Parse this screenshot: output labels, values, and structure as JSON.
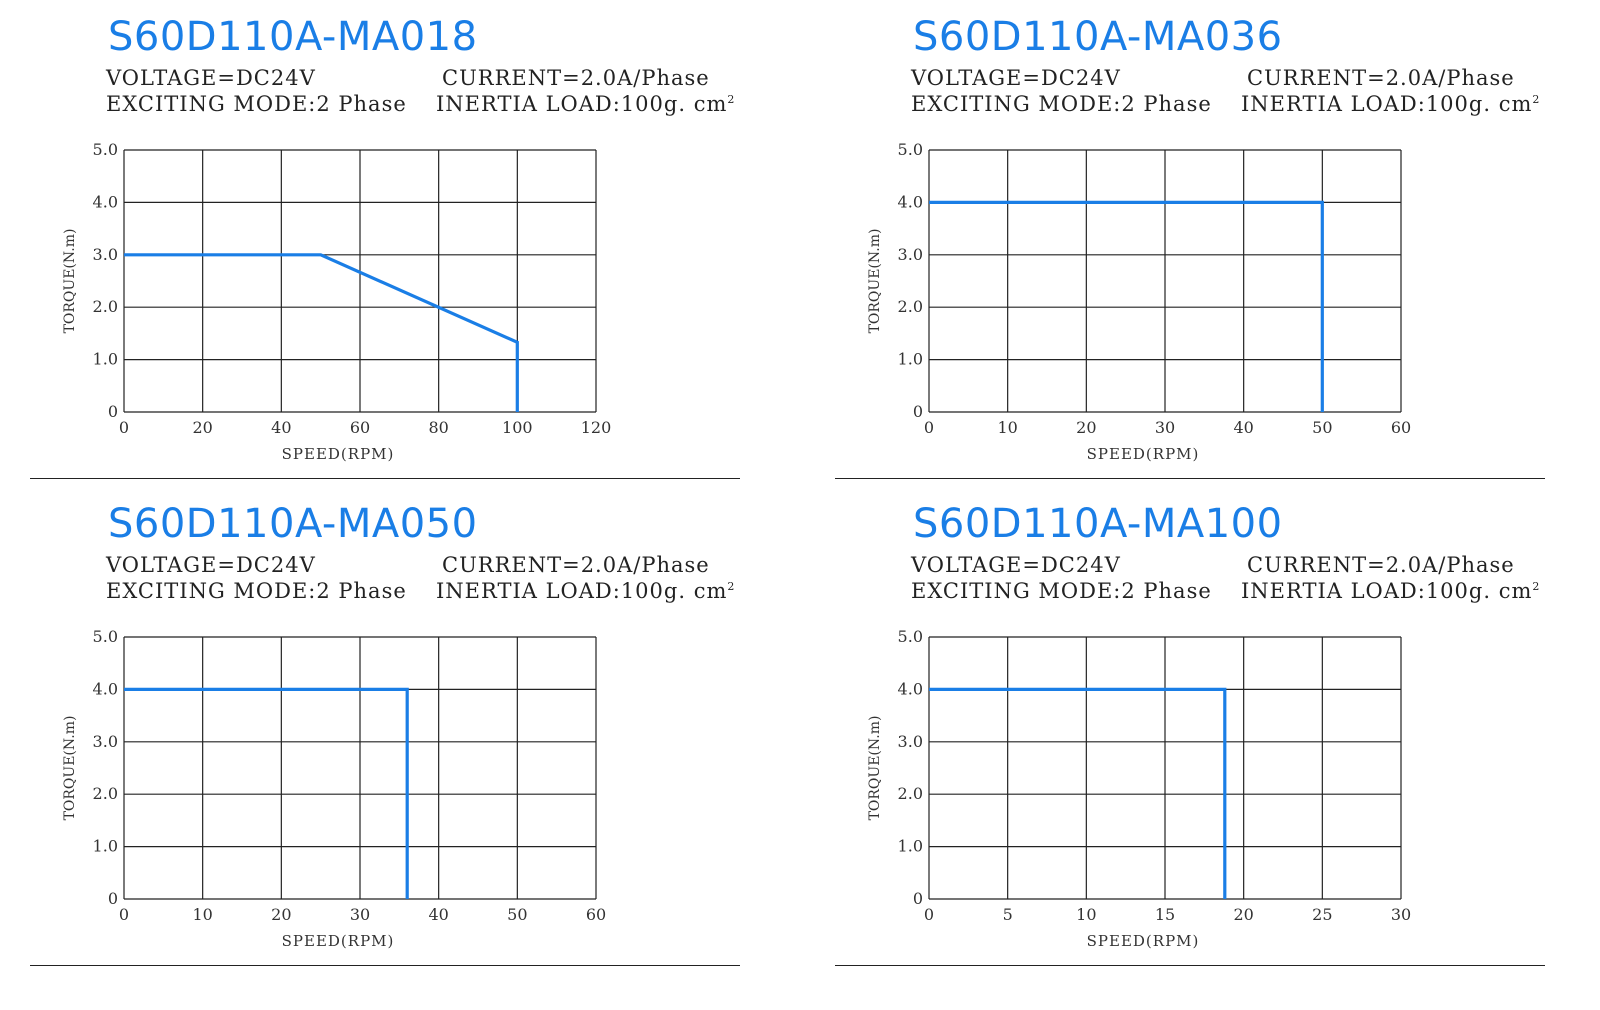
{
  "panels": [
    {
      "title": "S60D110A-MA018",
      "voltage": "VOLTAGE=DC24V",
      "current": "CURRENT=2.0A/Phase",
      "exciting_mode": "EXCITING MODE:2 Phase",
      "inertia_load": "INERTIA LOAD:100g. cm",
      "inertia_unit_sup": "2"
    },
    {
      "title": "S60D110A-MA036",
      "voltage": "VOLTAGE=DC24V",
      "current": "CURRENT=2.0A/Phase",
      "exciting_mode": "EXCITING MODE:2 Phase",
      "inertia_load": "INERTIA LOAD:100g. cm",
      "inertia_unit_sup": "2"
    },
    {
      "title": "S60D110A-MA050",
      "voltage": "VOLTAGE=DC24V",
      "current": "CURRENT=2.0A/Phase",
      "exciting_mode": "EXCITING MODE:2 Phase",
      "inertia_load": "INERTIA LOAD:100g. cm",
      "inertia_unit_sup": "2"
    },
    {
      "title": "S60D110A-MA100",
      "voltage": "VOLTAGE=DC24V",
      "current": "CURRENT=2.0A/Phase",
      "exciting_mode": "EXCITING MODE:2 Phase",
      "inertia_load": "INERTIA LOAD:100g. cm",
      "inertia_unit_sup": "2"
    }
  ],
  "chart_data": [
    {
      "type": "line",
      "title": "S60D110A-MA018",
      "xlabel": "SPEED(RPM)",
      "ylabel": "TORQUE(N.m)",
      "xlim": [
        0,
        120
      ],
      "ylim": [
        0,
        5
      ],
      "xticks": [
        "0",
        "20",
        "40",
        "60",
        "80",
        "100",
        "120"
      ],
      "yticks": [
        "0",
        "1.0",
        "2.0",
        "3.0",
        "4.0",
        "5.0"
      ],
      "grid": true,
      "color": "#1a7ee6",
      "series": [
        {
          "x": [
            0,
            50,
            100,
            100
          ],
          "y": [
            3.0,
            3.0,
            1.33,
            0
          ]
        }
      ]
    },
    {
      "type": "line",
      "title": "S60D110A-MA036",
      "xlabel": "SPEED(RPM)",
      "ylabel": "TORQUE(N.m)",
      "xlim": [
        0,
        60
      ],
      "ylim": [
        0,
        5
      ],
      "xticks": [
        "0",
        "10",
        "20",
        "30",
        "40",
        "50",
        "60"
      ],
      "yticks": [
        "0",
        "1.0",
        "2.0",
        "3.0",
        "4.0",
        "5.0"
      ],
      "grid": true,
      "color": "#1a7ee6",
      "series": [
        {
          "x": [
            0,
            50,
            50
          ],
          "y": [
            4.0,
            4.0,
            0
          ]
        }
      ]
    },
    {
      "type": "line",
      "title": "S60D110A-MA050",
      "xlabel": "SPEED(RPM)",
      "ylabel": "TORQUE(N.m)",
      "xlim": [
        0,
        60
      ],
      "ylim": [
        0,
        5
      ],
      "xticks": [
        "0",
        "10",
        "20",
        "30",
        "40",
        "50",
        "60"
      ],
      "yticks": [
        "0",
        "1.0",
        "2.0",
        "3.0",
        "4.0",
        "5.0"
      ],
      "grid": true,
      "color": "#1a7ee6",
      "series": [
        {
          "x": [
            0,
            36,
            36
          ],
          "y": [
            4.0,
            4.0,
            0
          ]
        }
      ]
    },
    {
      "type": "line",
      "title": "S60D110A-MA100",
      "xlabel": "SPEED(RPM)",
      "ylabel": "TORQUE(N.m)",
      "xlim": [
        0,
        30
      ],
      "ylim": [
        0,
        5
      ],
      "xticks": [
        "0",
        "5",
        "10",
        "15",
        "20",
        "25",
        "30"
      ],
      "yticks": [
        "0",
        "1.0",
        "2.0",
        "3.0",
        "4.0",
        "5.0"
      ],
      "grid": true,
      "color": "#1a7ee6",
      "series": [
        {
          "x": [
            0,
            18.8,
            18.8
          ],
          "y": [
            4.0,
            4.0,
            0
          ]
        }
      ]
    }
  ]
}
